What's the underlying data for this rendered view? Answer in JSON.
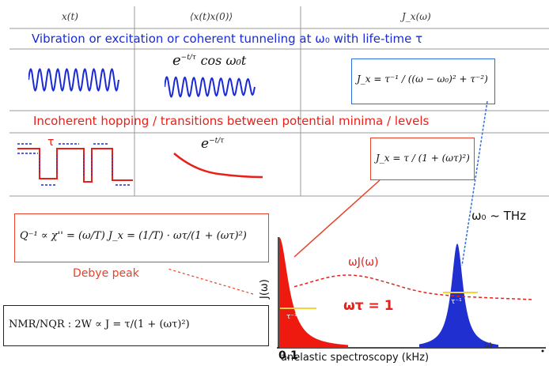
{
  "headers": [
    "x(t)",
    "⟨x(t)x(0)⟩",
    "J_x(ω)"
  ],
  "band1": "Vibration or excitation or coherent tunneling at ω₀ with life-time τ",
  "band2": "Incoherent hopping / transitions between potential minima / levels",
  "corr1": "e^{-t/τ} cos ω₀t",
  "corr1_exp": "−t/τ",
  "corr1_cos": "cos ω₀t",
  "corr2_base": "e",
  "corr2_exp": "−t/τ",
  "hop_label": "τ",
  "formula_lorentz": "J_x = τ⁻¹ / ((ω − ω₀)² + τ⁻²)",
  "formula_debye": "J_x = τ / (1 + (ωτ)²)",
  "formula_Q": "Q⁻¹ ∝ χ'' = (ω/T) J_x = (1/T) · ωτ/(1 + (ωτ)²)",
  "formula_nmr": "NMR/NQR : 2W ∝ J = τ/(1 + (ωτ)²)",
  "debye_peak": "Debye peak",
  "omega0_thz": "ω₀ ~ THz",
  "omega_J": "ωJ(ω)",
  "omega_tau_1": "ωτ = 1",
  "tau_inv_1": "τ⁻¹",
  "tau_inv_2": "τ⁻¹",
  "axis_y": "J(ω)",
  "axis_x_origin": "0.1",
  "axis_x_label": "anelastic spectroscopy (kHz)",
  "axis_x_omega": "ω",
  "colors": {
    "blue": "#1a2bd6",
    "red": "#e8201a",
    "box_blue": "#2a6fe0",
    "fill_blue": "#1f2fd0",
    "fill_red": "#ee1a10"
  }
}
